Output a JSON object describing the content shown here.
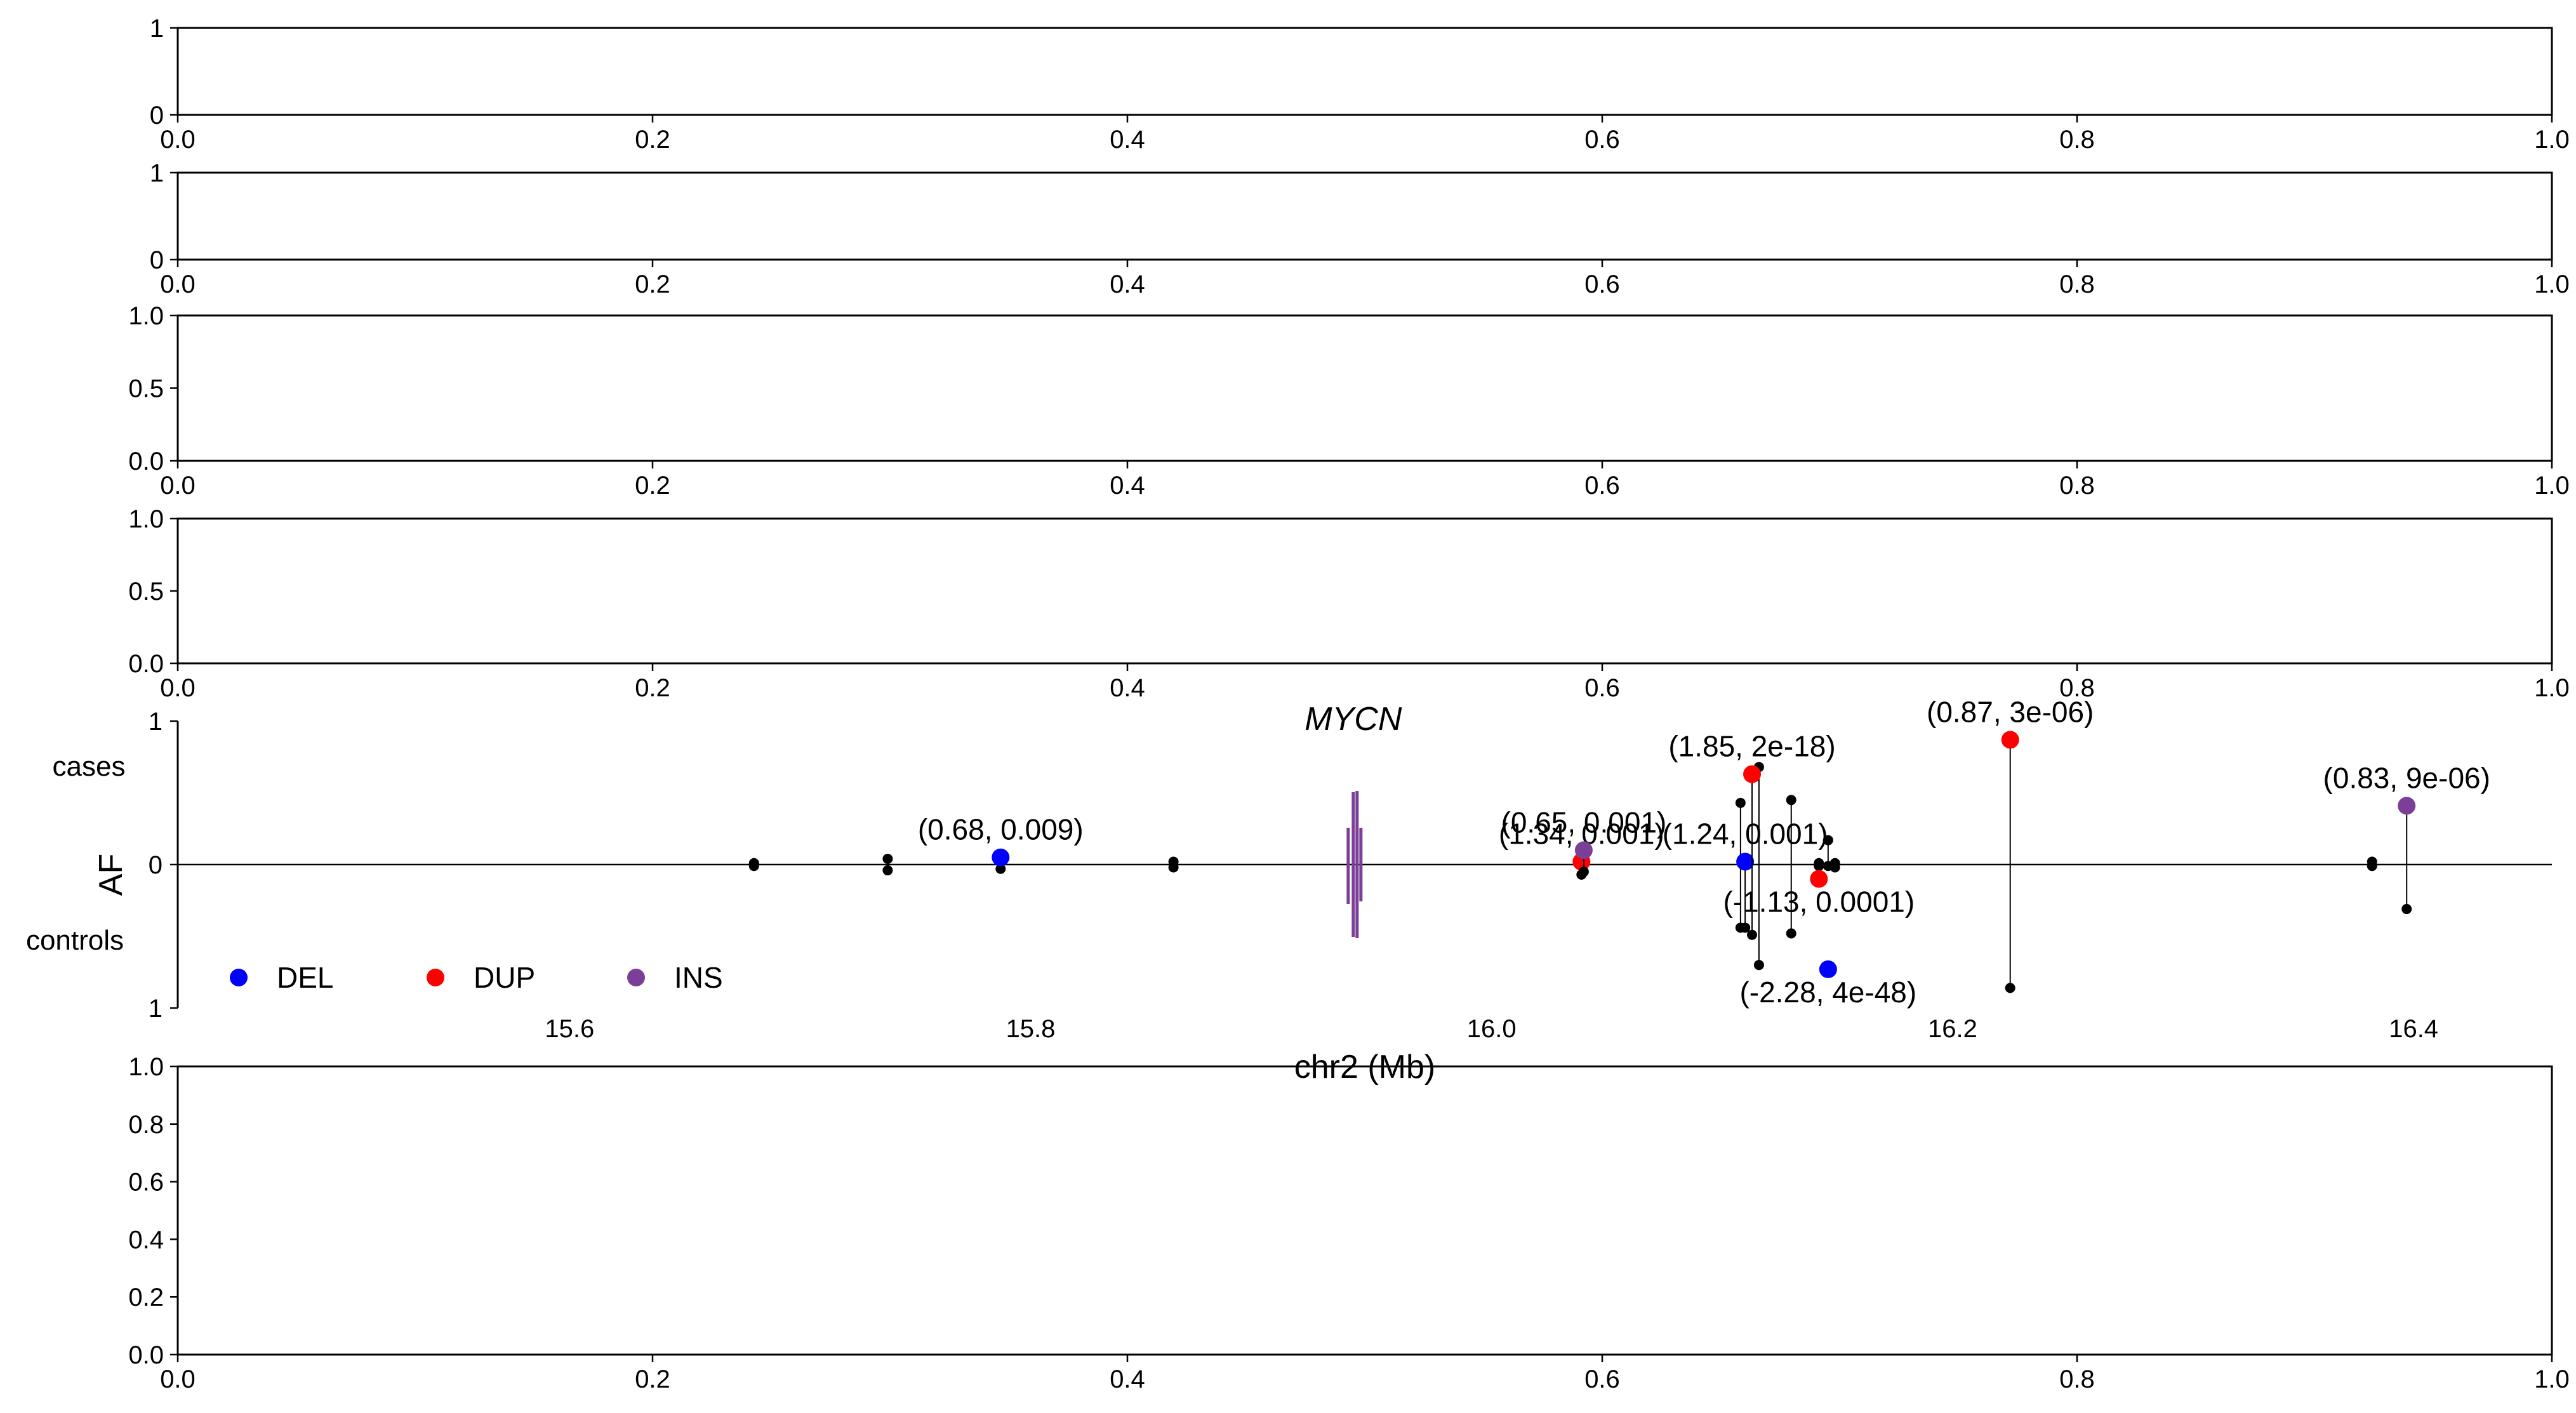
{
  "chart_data": [
    {
      "type": "scatter",
      "xlim": [
        0.0,
        1.0
      ],
      "ylim": [
        0,
        1
      ],
      "xticks": [
        "0.0",
        "0.2",
        "0.4",
        "0.6",
        "0.8",
        "1.0"
      ],
      "yticks": [
        "0",
        "1"
      ],
      "grid": false
    },
    {
      "type": "scatter",
      "xlim": [
        0.0,
        1.0
      ],
      "ylim": [
        0,
        1
      ],
      "xticks": [
        "0.0",
        "0.2",
        "0.4",
        "0.6",
        "0.8",
        "1.0"
      ],
      "yticks": [
        "0",
        "1"
      ],
      "grid": false
    },
    {
      "type": "scatter",
      "xlim": [
        0.0,
        1.0
      ],
      "ylim": [
        0.0,
        1.0
      ],
      "xticks": [
        "0.0",
        "0.2",
        "0.4",
        "0.6",
        "0.8",
        "1.0"
      ],
      "yticks": [
        "0.0",
        "0.5",
        "1.0"
      ],
      "grid": false
    },
    {
      "type": "scatter",
      "xlim": [
        0.0,
        1.0
      ],
      "ylim": [
        0.0,
        1.0
      ],
      "xticks": [
        "0.0",
        "0.2",
        "0.4",
        "0.6",
        "0.8",
        "1.0"
      ],
      "yticks": [
        "0.0",
        "0.5",
        "1.0"
      ],
      "grid": false
    },
    {
      "type": "scatter",
      "xlabel": "chr2 (Mb)",
      "ylabel": "AF",
      "top_label": "cases",
      "bottom_label": "controls",
      "gene_label": "MYCN",
      "gene_position": 15.94,
      "xlim": [
        15.43,
        16.46
      ],
      "ylim": [
        -1,
        1
      ],
      "xticks": [
        {
          "value": 15.6,
          "label": "15.6"
        },
        {
          "value": 15.8,
          "label": "15.8"
        },
        {
          "value": 16.0,
          "label": "16.0"
        },
        {
          "value": 16.2,
          "label": "16.2"
        },
        {
          "value": 16.4,
          "label": "16.4"
        }
      ],
      "yticks": [
        {
          "value": 1,
          "label": "1"
        },
        {
          "value": 0,
          "label": "0"
        },
        {
          "value": -1,
          "label": "1"
        }
      ],
      "legend": {
        "placement": "lower-left",
        "entries": [
          {
            "label": "DEL",
            "color": "#0000ff"
          },
          {
            "label": "DUP",
            "color": "#ff0000"
          },
          {
            "label": "INS",
            "color": "#7b3f98"
          }
        ]
      },
      "colors": {
        "DEL": "#0000ff",
        "DUP": "#ff0000",
        "INS": "#7b3f98",
        "background_variant": "#000000"
      },
      "highlighted_variants": [
        {
          "x": 15.787,
          "case_af": 0.05,
          "control_af": 0.03,
          "type": "DEL",
          "label": "(0.68, 0.009)",
          "label_pos": "above"
        },
        {
          "x": 16.039,
          "case_af": 0.02,
          "control_af": 0.07,
          "type": "DUP",
          "label": "(1.34, 0.001)",
          "label_pos": "above"
        },
        {
          "x": 16.04,
          "case_af": 0.1,
          "control_af": 0.05,
          "type": "INS",
          "label": "(0.65, 0.001)",
          "label_pos": "above"
        },
        {
          "x": 16.11,
          "case_af": 0.02,
          "control_af": 0.44,
          "type": "DEL",
          "label": "(1.24, 0.001)",
          "label_pos": "above"
        },
        {
          "x": 16.113,
          "case_af": 0.63,
          "control_af": 0.49,
          "type": "DUP",
          "label": "(1.85, 2e-18)",
          "label_pos": "above"
        },
        {
          "x": 16.142,
          "case_af": -0.1,
          "control_af": -0.1,
          "type": "DUP",
          "label": "(-1.13, 0.0001)",
          "label_pos": "below"
        },
        {
          "x": 16.146,
          "case_af": -0.73,
          "control_af": -0.73,
          "type": "DEL",
          "label": "(-2.28, 4e-48)",
          "label_pos": "below"
        },
        {
          "x": 16.225,
          "case_af": 0.87,
          "control_af": 0.86,
          "type": "DUP",
          "label": "(0.87, 3e-06)",
          "label_pos": "above"
        },
        {
          "x": 16.397,
          "case_af": 0.41,
          "control_af": 0.31,
          "type": "INS",
          "label": "(0.83, 9e-06)",
          "label_pos": "above"
        }
      ],
      "background_variants": [
        {
          "x": 15.68,
          "case_af": 0.01,
          "control_af": 0.01
        },
        {
          "x": 15.738,
          "case_af": 0.04,
          "control_af": 0.04
        },
        {
          "x": 15.862,
          "case_af": 0.02,
          "control_af": 0.02
        },
        {
          "x": 16.108,
          "case_af": 0.43,
          "control_af": 0.44
        },
        {
          "x": 16.116,
          "case_af": 0.68,
          "control_af": 0.7
        },
        {
          "x": 16.13,
          "case_af": 0.45,
          "control_af": 0.48
        },
        {
          "x": 16.142,
          "case_af": 0.01,
          "control_af": 0.01
        },
        {
          "x": 16.146,
          "case_af": 0.17,
          "control_af": 0.01
        },
        {
          "x": 16.149,
          "case_af": 0.01,
          "control_af": 0.02
        },
        {
          "x": 16.382,
          "case_af": 0.02,
          "control_af": 0.01
        }
      ]
    },
    {
      "type": "scatter",
      "xlim": [
        0.0,
        1.0
      ],
      "ylim": [
        0.0,
        1.0
      ],
      "xticks": [
        "0.0",
        "0.2",
        "0.4",
        "0.6",
        "0.8",
        "1.0"
      ],
      "yticks": [
        "0.0",
        "0.2",
        "0.4",
        "0.6",
        "0.8",
        "1.0"
      ],
      "grid": false
    }
  ]
}
